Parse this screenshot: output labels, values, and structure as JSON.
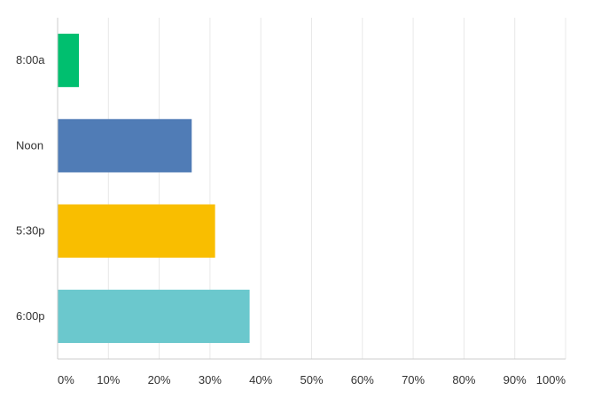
{
  "chart_data": {
    "type": "bar",
    "orientation": "horizontal",
    "categories": [
      "8:00a",
      "Noon",
      "5:30p",
      "6:00p"
    ],
    "values": [
      4.2,
      26.4,
      31.0,
      37.8
    ],
    "colors": [
      "#00bf6f",
      "#507cb6",
      "#f9be00",
      "#6bc8cd"
    ],
    "x_ticks": [
      "0%",
      "10%",
      "20%",
      "30%",
      "40%",
      "50%",
      "60%",
      "70%",
      "80%",
      "90%",
      "100%"
    ],
    "xlim": [
      0,
      100
    ],
    "grid": true,
    "title": "",
    "xlabel": "",
    "ylabel": ""
  }
}
